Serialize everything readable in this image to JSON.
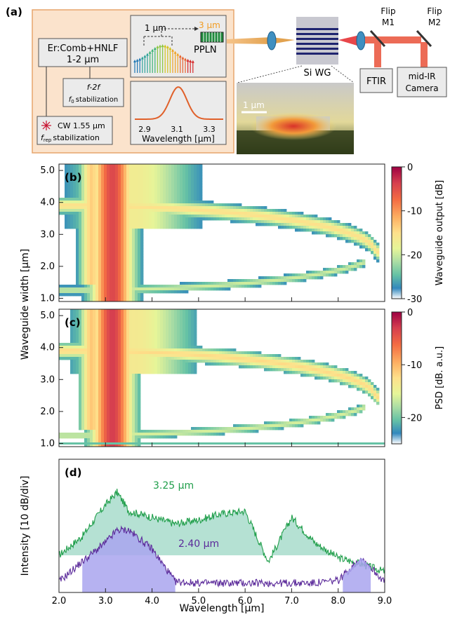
{
  "panel_a": {
    "label": "(a)",
    "source_box": "Er:Comb+HNLF",
    "source_range": "1-2 μm",
    "f2f_line1": "f-2f",
    "f2f_line2": "f",
    "f2f_sub": "0",
    "f2f_line3": "stabilization",
    "cw_label": "CW 1.55 μm",
    "frep_label": "f",
    "frep_sub": "rep",
    "frep_tail": "stabilization",
    "ppln_in": "1 μm",
    "ppln_out": "3 μm",
    "ppln_label": "PPLN",
    "inset_ticks": [
      "2.9",
      "3.1",
      "3.3"
    ],
    "inset_xlabel": "Wavelength [μm]",
    "wg_label": "Si WG",
    "scale_bar": "1 μm",
    "flip1": [
      "Flip",
      "M1"
    ],
    "flip2": [
      "Flip",
      "M2"
    ],
    "ftir": "FTIR",
    "camera": [
      "mid-IR",
      "Camera"
    ],
    "colors": {
      "box_fill": "#fbe3cc",
      "box_border": "#e7a56d",
      "ppln_out": "#f29b1f",
      "beam": "#f0a050",
      "mirror_beam": "#e8474a"
    }
  },
  "panel_b": {
    "label": "(b)",
    "ylabel": "Waveguide width [μm]",
    "yticks": [
      "1.0",
      "2.0",
      "3.0",
      "4.0",
      "5.0"
    ],
    "colorbar_label": "Waveguide output [dB]",
    "colorbar_ticks": [
      "0",
      "-10",
      "-20",
      "-30"
    ]
  },
  "panel_c": {
    "label": "(c)",
    "yticks": [
      "1.0",
      "2.0",
      "3.0",
      "4.0",
      "5.0"
    ],
    "colorbar_label": "PSD [dB. a.u.]",
    "colorbar_ticks": [
      "0",
      "-10",
      "-20"
    ]
  },
  "panel_d": {
    "label": "(d)",
    "ylabel": "Intensity [10 dB/div]",
    "xlabel": "Wavelength [μm]",
    "xticks": [
      "2.0",
      "3.0",
      "4.0",
      "5.0",
      "6.0",
      "7.0",
      "8.0",
      "9.0"
    ],
    "green_label": "3.25 μm",
    "purple_label": "2.40 μm",
    "colors": {
      "green": "#1f9e4a",
      "green_fill": "#a8dccb",
      "purple": "#5b2a9a",
      "purple_fill": "#a9a4ef"
    }
  },
  "chart_data": {
    "type": "line",
    "x": [
      2.0,
      2.5,
      3.0,
      3.25,
      3.5,
      4.0,
      4.5,
      5.0,
      5.5,
      6.0,
      6.5,
      7.0,
      7.5,
      8.0,
      8.5,
      9.0
    ],
    "xlabel": "Wavelength [μm]",
    "ylabel": "Intensity [10 dB/div]",
    "xlim": [
      2.0,
      9.0
    ],
    "series": [
      {
        "name": "3.25 μm",
        "values": [
          2.5,
          4.0,
          6.5,
          7.5,
          6.0,
          5.5,
          5.0,
          5.3,
          5.8,
          6.0,
          2.0,
          5.5,
          3.5,
          2.3,
          1.8,
          1.2
        ]
      },
      {
        "name": "2.40 μm",
        "values": [
          0.4,
          2.0,
          3.5,
          4.5,
          4.5,
          3.0,
          0.4,
          0.3,
          0.3,
          0.3,
          0.3,
          0.3,
          0.3,
          0.5,
          2.3,
          0.4
        ]
      }
    ]
  }
}
